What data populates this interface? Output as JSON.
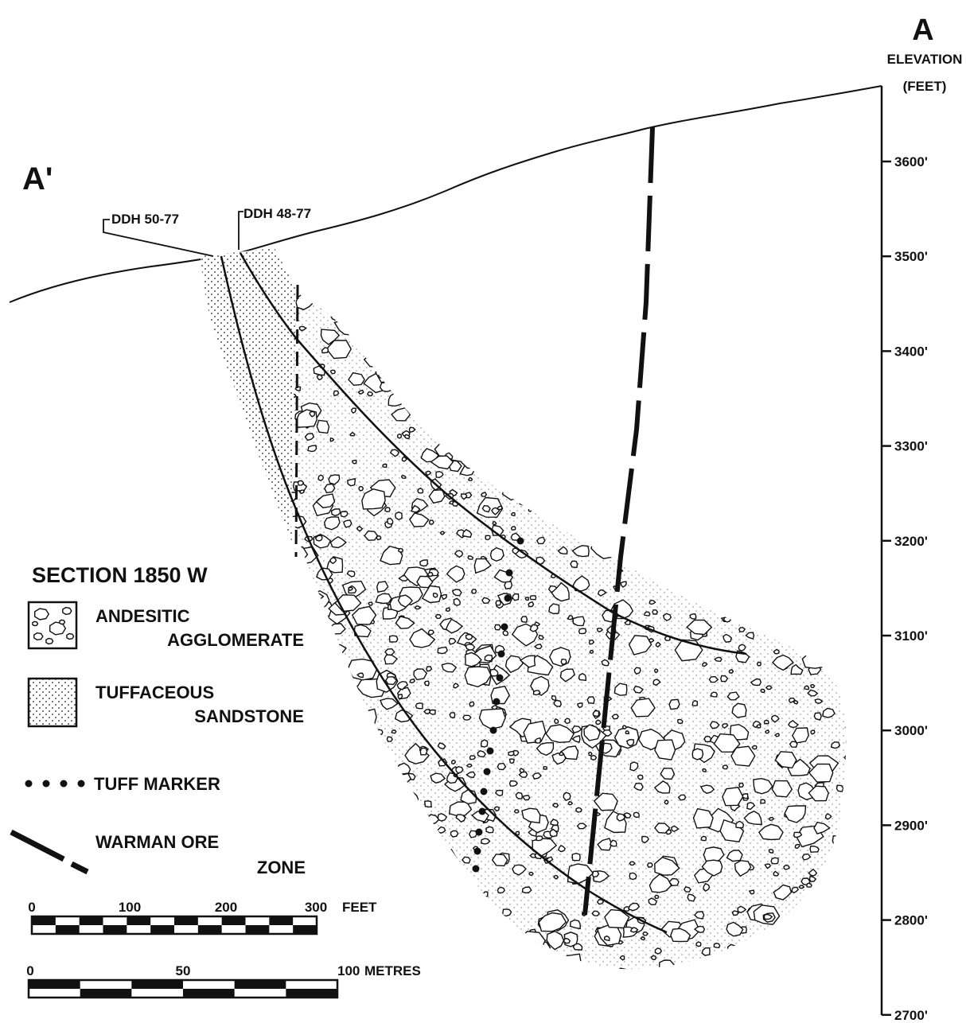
{
  "section_end_right": "A",
  "section_end_left": "A'",
  "elevation_axis": {
    "title_line1": "ELEVATION",
    "title_line2": "(FEET)",
    "ticks": [
      "3600'",
      "3500'",
      "3400'",
      "3300'",
      "3200'",
      "3100'",
      "3000'",
      "2900'",
      "2800'",
      "2700'"
    ]
  },
  "drill_holes": [
    {
      "name": "DDH 50-77"
    },
    {
      "name": "DDH 48-77"
    }
  ],
  "legend": {
    "title": "SECTION 1850 W",
    "items": [
      {
        "pattern": "agglomerate-pattern-icon",
        "line1": "ANDESITIC",
        "line2": "AGGLOMERATE"
      },
      {
        "pattern": "dot-stipple-pattern-icon",
        "line1": "TUFFACEOUS",
        "line2": "SANDSTONE"
      },
      {
        "pattern": "dotted-line-icon",
        "line1": "TUFF MARKER",
        "line2": ""
      },
      {
        "pattern": "dashed-heavy-line-icon",
        "line1": "WARMAN ORE",
        "line2": "ZONE"
      }
    ]
  },
  "scale_feet": {
    "labels": [
      "0",
      "100",
      "200",
      "300"
    ],
    "unit": "FEET"
  },
  "scale_metres": {
    "labels": [
      "0",
      "50",
      "100"
    ],
    "unit": "METRES"
  },
  "colors": {
    "ink": "#111111",
    "paper": "#ffffff"
  }
}
